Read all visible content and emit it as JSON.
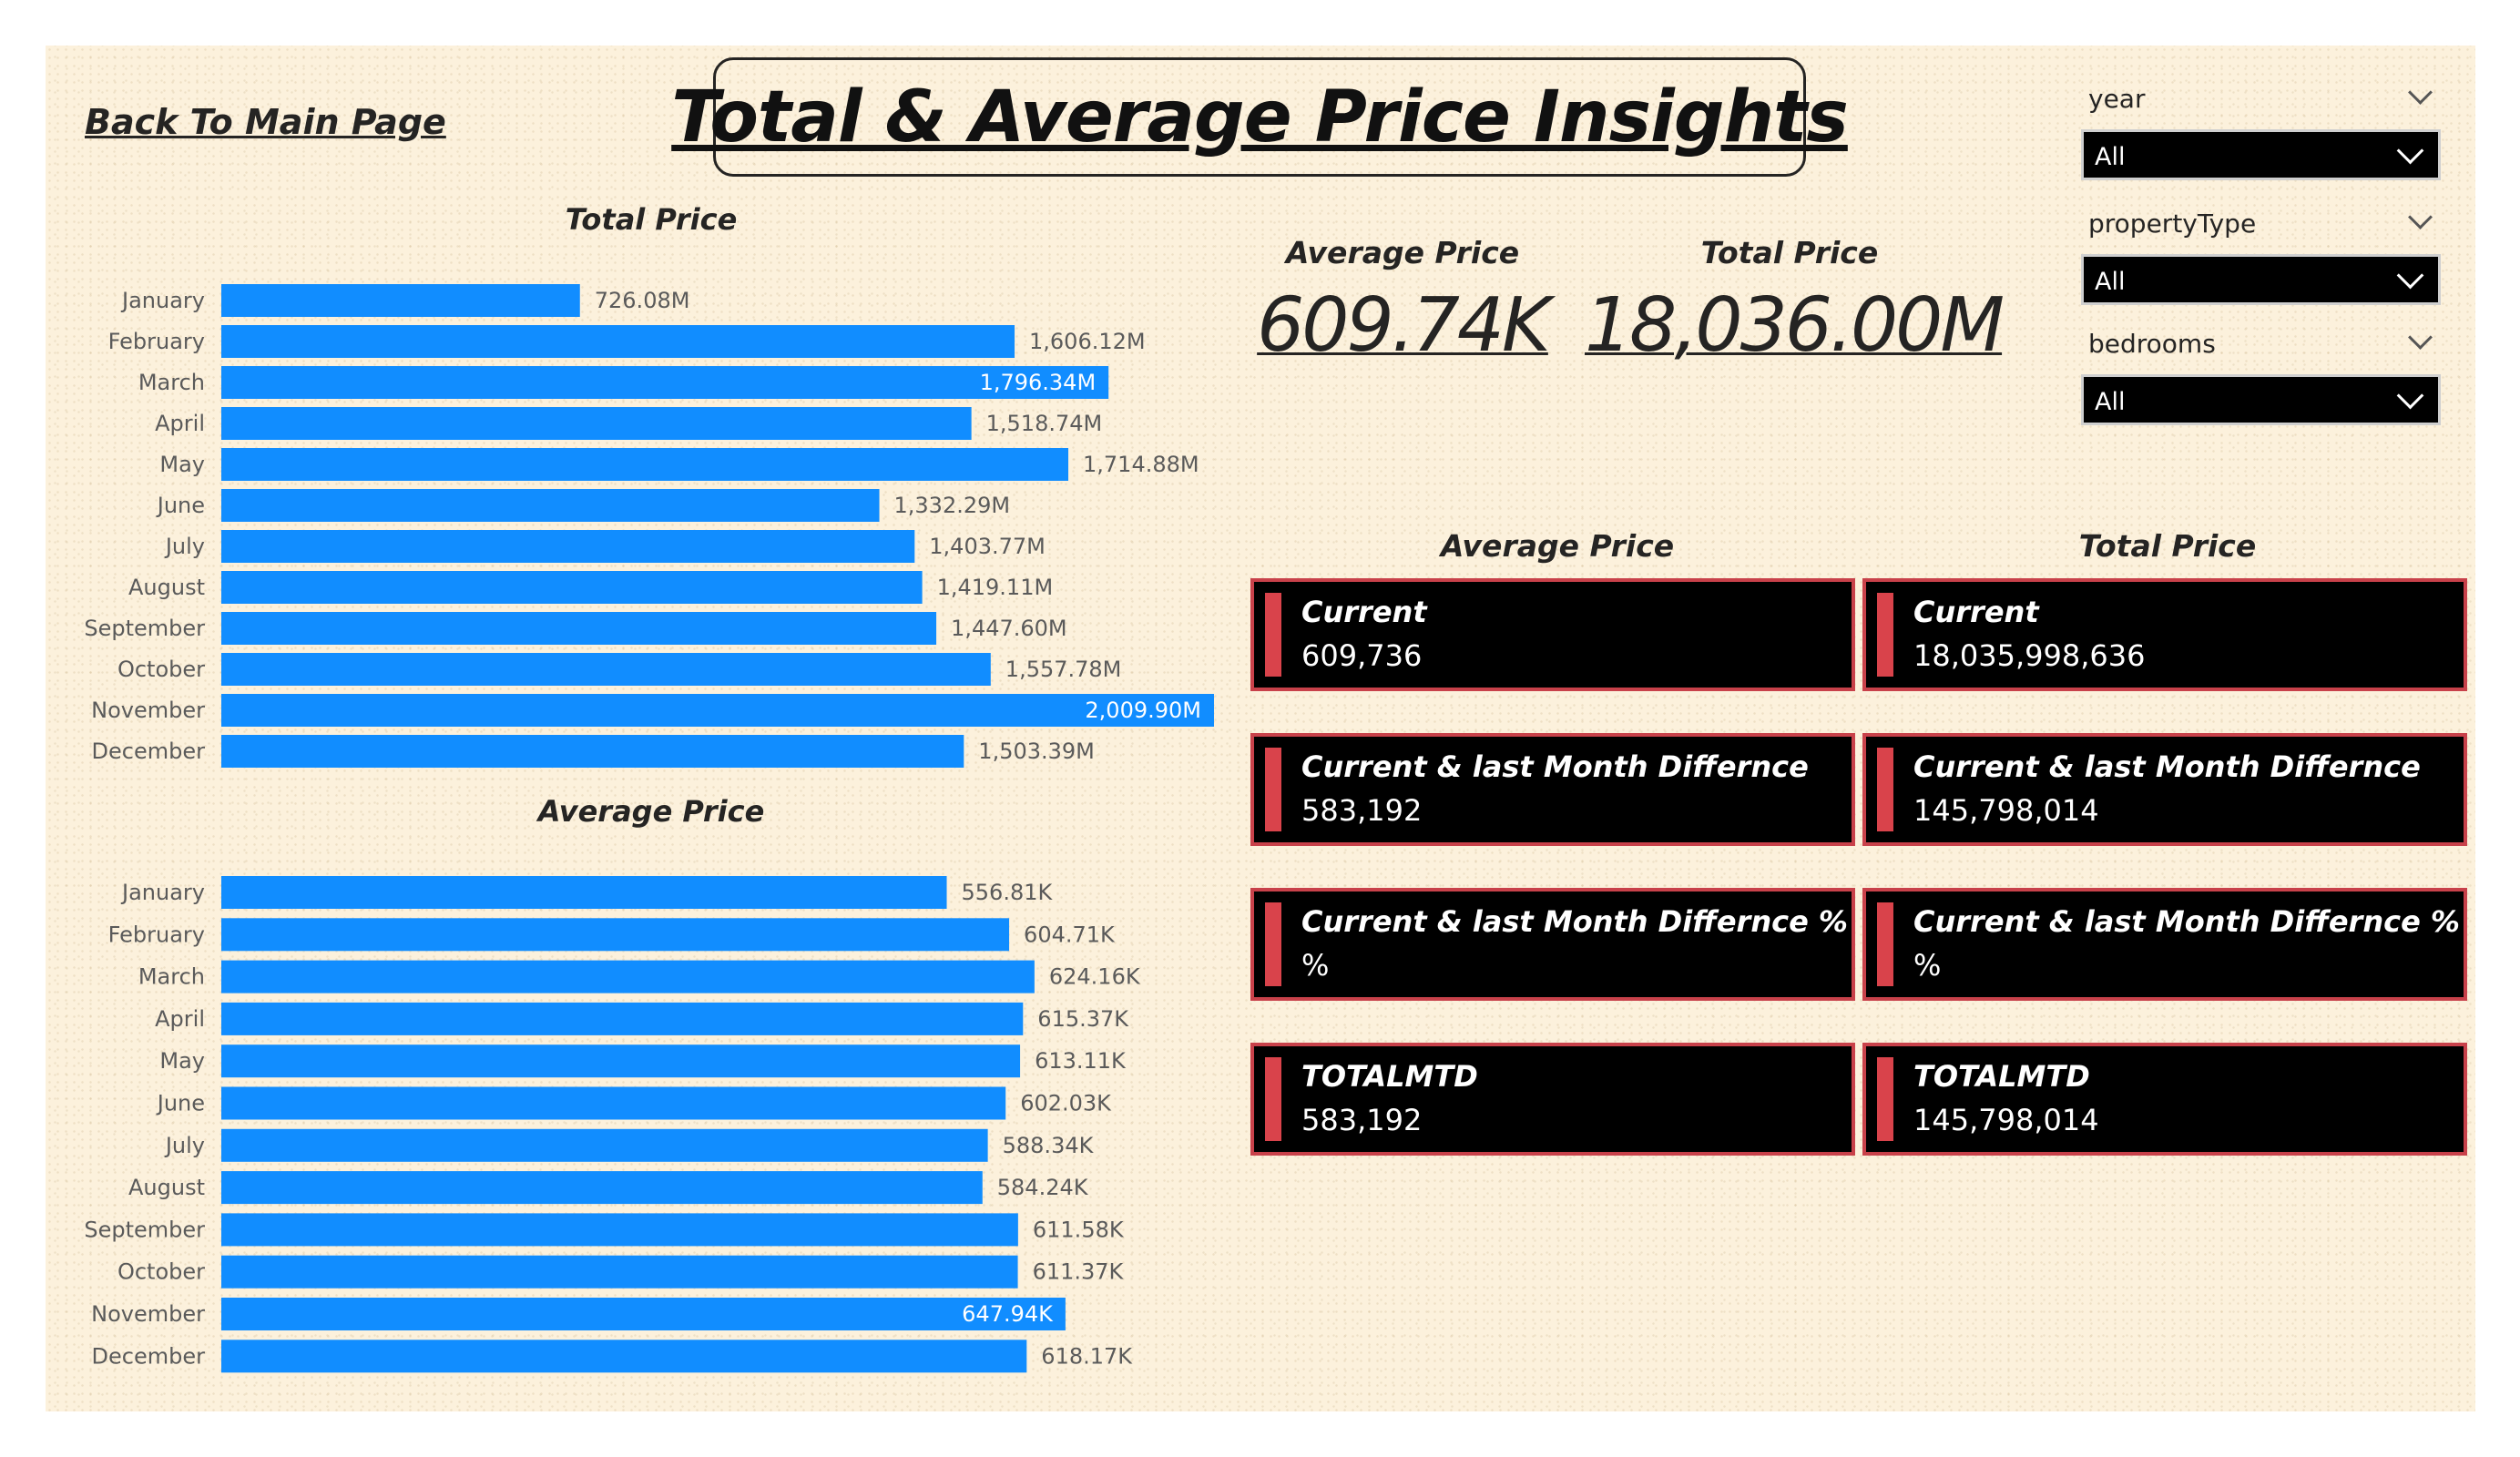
{
  "page": {
    "title": "Total & Average Price Insights",
    "back_link": "Back To Main Page"
  },
  "kpis": {
    "average_label": "Average Price",
    "average_value": "609.74K",
    "total_label": "Total Price",
    "total_value": "18,036.00M"
  },
  "filters": [
    {
      "label": "year",
      "value": "All"
    },
    {
      "label": "propertyType",
      "value": "All"
    },
    {
      "label": "bedrooms",
      "value": "All"
    }
  ],
  "cards": {
    "average_title": "Average Price",
    "total_title": "Total Price",
    "average": [
      {
        "title": "Current",
        "value": "609,736"
      },
      {
        "title": "Current & last Month Differnce",
        "value": "583,192"
      },
      {
        "title": "Current & last Month Differnce %",
        "value": "%"
      },
      {
        "title": "TOTALMTD",
        "value": "583,192"
      }
    ],
    "total": [
      {
        "title": "Current",
        "value": "18,035,998,636"
      },
      {
        "title": "Current & last Month Differnce",
        "value": "145,798,014"
      },
      {
        "title": "Current & last Month Differnce %",
        "value": "%"
      },
      {
        "title": "TOTALMTD",
        "value": "145,798,014"
      }
    ]
  },
  "colors": {
    "bar": "#118dff",
    "card_border": "#c8414a",
    "card_accent": "#d9434b",
    "background": "#fcf1dc"
  },
  "chart_data": [
    {
      "type": "bar",
      "orientation": "horizontal",
      "title": "Total Price",
      "categories": [
        "January",
        "February",
        "March",
        "April",
        "May",
        "June",
        "July",
        "August",
        "September",
        "October",
        "November",
        "December"
      ],
      "values": [
        726.08,
        1606.12,
        1796.34,
        1518.74,
        1714.88,
        1332.29,
        1403.77,
        1419.11,
        1447.6,
        1557.78,
        2009.9,
        1503.39
      ],
      "data_labels": [
        "726.08M",
        "1,606.12M",
        "1,796.34M",
        "1,518.74M",
        "1,714.88M",
        "1,332.29M",
        "1,403.77M",
        "1,419.11M",
        "1,447.60M",
        "1,557.78M",
        "2,009.90M",
        "1,503.39M"
      ],
      "labels_inside": [
        false,
        false,
        true,
        false,
        false,
        false,
        false,
        false,
        false,
        false,
        true,
        false
      ],
      "xlim": [
        0,
        2009.9
      ]
    },
    {
      "type": "bar",
      "orientation": "horizontal",
      "title": "Average Price",
      "categories": [
        "January",
        "February",
        "March",
        "April",
        "May",
        "June",
        "July",
        "August",
        "September",
        "October",
        "November",
        "December"
      ],
      "values": [
        556.81,
        604.71,
        624.16,
        615.37,
        613.11,
        602.03,
        588.34,
        584.24,
        611.58,
        611.37,
        647.94,
        618.17
      ],
      "data_labels": [
        "556.81K",
        "604.71K",
        "624.16K",
        "615.37K",
        "613.11K",
        "602.03K",
        "588.34K",
        "584.24K",
        "611.58K",
        "611.37K",
        "647.94K",
        "618.17K"
      ],
      "labels_inside": [
        false,
        false,
        false,
        false,
        false,
        false,
        false,
        false,
        false,
        false,
        true,
        false
      ],
      "xlim": [
        0,
        734
      ]
    }
  ]
}
